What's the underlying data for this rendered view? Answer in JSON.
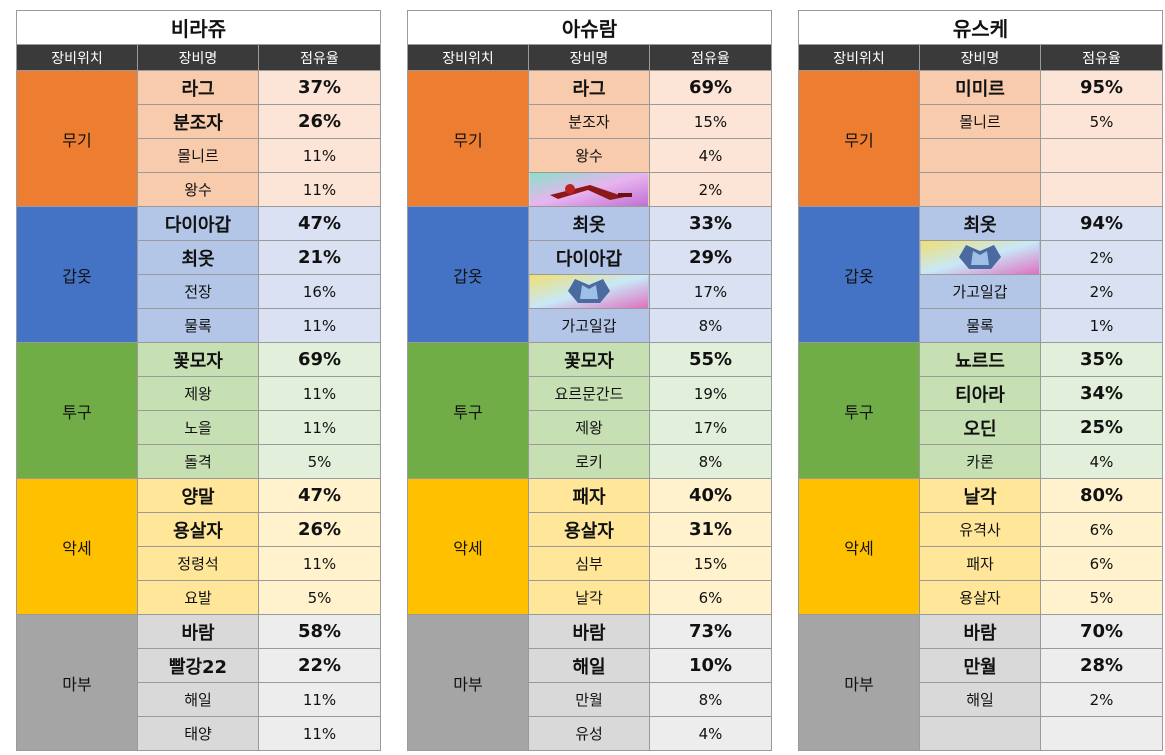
{
  "headers": {
    "slot": "장비위치",
    "item": "장비명",
    "share": "점유율"
  },
  "categories": [
    "무기",
    "갑옷",
    "투구",
    "악세",
    "마부"
  ],
  "colors": {
    "cat": [
      "#ed7d31",
      "#4472c4",
      "#70ad47",
      "#ffc000",
      "#a5a5a5"
    ],
    "name": [
      "#f8cbad",
      "#b4c6e7",
      "#c6e0b4",
      "#ffe699",
      "#d9d9d9"
    ],
    "pct": [
      "#fce4d6",
      "#d9e1f2",
      "#e2efda",
      "#fff2cc",
      "#ededed"
    ]
  },
  "tables": [
    {
      "title": "비라쥬",
      "groups": [
        [
          {
            "name": "라그",
            "pct": "37%",
            "bold": true
          },
          {
            "name": "분조자",
            "pct": "26%",
            "bold": true
          },
          {
            "name": "몰니르",
            "pct": "11%"
          },
          {
            "name": "왕수",
            "pct": "11%"
          }
        ],
        [
          {
            "name": "다이아갑",
            "pct": "47%",
            "bold": true
          },
          {
            "name": "최옷",
            "pct": "21%",
            "bold": true
          },
          {
            "name": "전장",
            "pct": "16%"
          },
          {
            "name": "물록",
            "pct": "11%"
          }
        ],
        [
          {
            "name": "꽃모자",
            "pct": "69%",
            "bold": true
          },
          {
            "name": "제왕",
            "pct": "11%"
          },
          {
            "name": "노을",
            "pct": "11%"
          },
          {
            "name": "돌격",
            "pct": "5%"
          }
        ],
        [
          {
            "name": "양말",
            "pct": "47%",
            "bold": true
          },
          {
            "name": "용살자",
            "pct": "26%",
            "bold": true
          },
          {
            "name": "정령석",
            "pct": "11%"
          },
          {
            "name": "요발",
            "pct": "5%"
          }
        ],
        [
          {
            "name": "바람",
            "pct": "58%",
            "bold": true
          },
          {
            "name": "빨강22",
            "pct": "22%",
            "bold": true
          },
          {
            "name": "해일",
            "pct": "11%"
          },
          {
            "name": "태양",
            "pct": "11%"
          }
        ]
      ]
    },
    {
      "title": "아슈람",
      "groups": [
        [
          {
            "name": "라그",
            "pct": "69%",
            "bold": true
          },
          {
            "name": "분조자",
            "pct": "15%"
          },
          {
            "name": "왕수",
            "pct": "4%"
          },
          {
            "name": "",
            "pct": "2%",
            "img": "weapon-item-image"
          }
        ],
        [
          {
            "name": "최옷",
            "pct": "33%",
            "bold": true
          },
          {
            "name": "다이아갑",
            "pct": "29%",
            "bold": true
          },
          {
            "name": "",
            "pct": "17%",
            "img": "armor-item-image"
          },
          {
            "name": "가고일갑",
            "pct": "8%"
          }
        ],
        [
          {
            "name": "꽃모자",
            "pct": "55%",
            "bold": true
          },
          {
            "name": "요르문간드",
            "pct": "19%"
          },
          {
            "name": "제왕",
            "pct": "17%"
          },
          {
            "name": "로키",
            "pct": "8%"
          }
        ],
        [
          {
            "name": "패자",
            "pct": "40%",
            "bold": true
          },
          {
            "name": "용살자",
            "pct": "31%",
            "bold": true
          },
          {
            "name": "심부",
            "pct": "15%"
          },
          {
            "name": "날각",
            "pct": "6%"
          }
        ],
        [
          {
            "name": "바람",
            "pct": "73%",
            "bold": true
          },
          {
            "name": "해일",
            "pct": "10%",
            "bold": true
          },
          {
            "name": "만월",
            "pct": "8%"
          },
          {
            "name": "유성",
            "pct": "4%"
          }
        ]
      ]
    },
    {
      "title": "유스케",
      "groups": [
        [
          {
            "name": "미미르",
            "pct": "95%",
            "bold": true
          },
          {
            "name": "몰니르",
            "pct": "5%"
          },
          {
            "name": "",
            "pct": ""
          },
          {
            "name": "",
            "pct": ""
          }
        ],
        [
          {
            "name": "최옷",
            "pct": "94%",
            "bold": true
          },
          {
            "name": "",
            "pct": "2%",
            "img": "armor-item-image"
          },
          {
            "name": "가고일갑",
            "pct": "2%"
          },
          {
            "name": "물록",
            "pct": "1%"
          }
        ],
        [
          {
            "name": "뇨르드",
            "pct": "35%",
            "bold": true
          },
          {
            "name": "티아라",
            "pct": "34%",
            "bold": true
          },
          {
            "name": "오딘",
            "pct": "25%",
            "bold": true
          },
          {
            "name": "카론",
            "pct": "4%"
          }
        ],
        [
          {
            "name": "날각",
            "pct": "80%",
            "bold": true
          },
          {
            "name": "유격사",
            "pct": "6%"
          },
          {
            "name": "패자",
            "pct": "6%"
          },
          {
            "name": "용살자",
            "pct": "5%"
          }
        ],
        [
          {
            "name": "바람",
            "pct": "70%",
            "bold": true
          },
          {
            "name": "만월",
            "pct": "28%",
            "bold": true
          },
          {
            "name": "해일",
            "pct": "2%"
          },
          {
            "name": "",
            "pct": ""
          }
        ]
      ]
    }
  ]
}
